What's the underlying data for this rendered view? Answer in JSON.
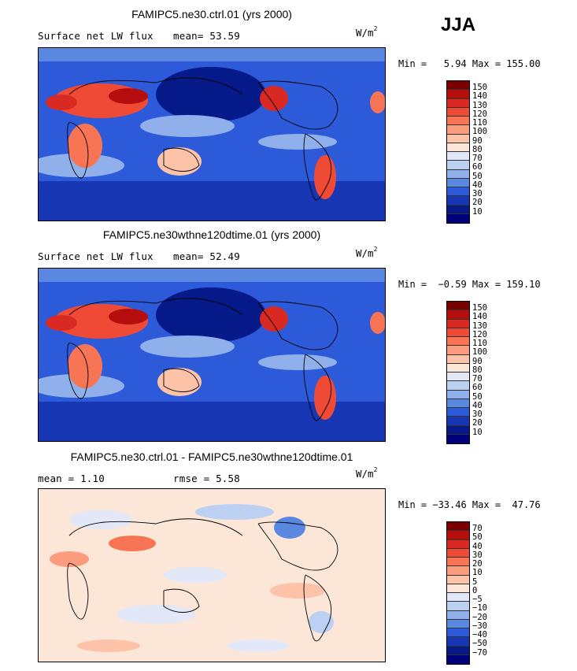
{
  "season": "JJA",
  "panels": [
    {
      "title": "FAMIPC5.ne30.ctrl.01 (yrs 2000)",
      "left": "Surface net LW flux",
      "middle": "mean=  53.59",
      "unit": "W/m",
      "unit_exp": "2",
      "minmax": "Min =   5.94 Max = 155.00",
      "colorbar_labels": [
        "150",
        "140",
        "130",
        "120",
        "110",
        "100",
        "90",
        "80",
        "70",
        "60",
        "50",
        "40",
        "30",
        "20",
        "10"
      ],
      "colors": [
        "#7a0000",
        "#b40e0e",
        "#d82a22",
        "#ee4a35",
        "#f77555",
        "#fb9c7f",
        "#fcc3a8",
        "#fce6d8",
        "#e2e8f8",
        "#bcd0f2",
        "#8fb0ea",
        "#5a87e0",
        "#2d5ad8",
        "#1636b4",
        "#061a8a",
        "#000078"
      ]
    },
    {
      "title": "FAMIPC5.ne30wthne120dtime.01 (yrs 2000)",
      "left": "Surface net LW flux",
      "middle": "mean=  52.49",
      "unit": "W/m",
      "unit_exp": "2",
      "minmax": "Min =  −0.59 Max = 159.10",
      "colorbar_labels": [
        "150",
        "140",
        "130",
        "120",
        "110",
        "100",
        "90",
        "80",
        "70",
        "60",
        "50",
        "40",
        "30",
        "20",
        "10"
      ],
      "colors": [
        "#7a0000",
        "#b40e0e",
        "#d82a22",
        "#ee4a35",
        "#f77555",
        "#fb9c7f",
        "#fcc3a8",
        "#fce6d8",
        "#e2e8f8",
        "#bcd0f2",
        "#8fb0ea",
        "#5a87e0",
        "#2d5ad8",
        "#1636b4",
        "#061a8a",
        "#000078"
      ]
    },
    {
      "title": "FAMIPC5.ne30.ctrl.01 - FAMIPC5.ne30wthne120dtime.01",
      "left": "mean =   1.10",
      "middle": "rmse =   5.58",
      "unit": "W/m",
      "unit_exp": "2",
      "minmax": "Min = −33.46 Max =  47.76",
      "colorbar_labels": [
        "70",
        "50",
        "40",
        "30",
        "20",
        "10",
        "5",
        "0",
        "−5",
        "−10",
        "−20",
        "−30",
        "−40",
        "−50",
        "−70"
      ],
      "colors": [
        "#7a0000",
        "#b40e0e",
        "#d82a22",
        "#ee4a35",
        "#f77555",
        "#fb9c7f",
        "#fcc3a8",
        "#fce6d8",
        "#e2e8f8",
        "#bcd0f2",
        "#8fb0ea",
        "#5a87e0",
        "#2d5ad8",
        "#1636b4",
        "#061a8a",
        "#000078"
      ]
    }
  ]
}
